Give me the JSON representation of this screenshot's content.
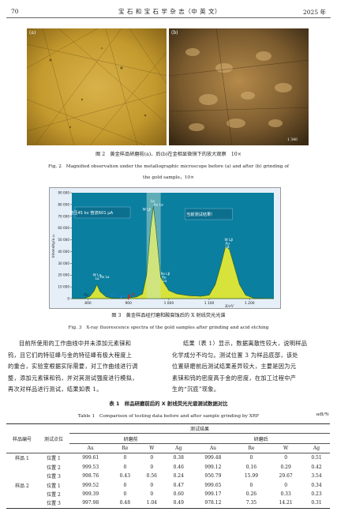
{
  "header": {
    "page_left": "70",
    "journal": "宝 石 和 宝 石 学 杂 志（中 英 文）",
    "year": "2025 年"
  },
  "figure2": {
    "label_a": "(a)",
    "label_b": "(b)",
    "scale_text": "1 340",
    "caption_cn": "图 2　黄金样品研磨前(a)、后(b)在金相显微镜下的放大观察　10×",
    "caption_en_1": "Fig. 2　Magnified observation under the metallographic microscope before (a) and after (b) grinding of",
    "caption_en_2": "the gold sample，10×"
  },
  "figure3": {
    "caption_cn": "图 3　黄金样品经打磨和酸腐蚀后的 X 射线荧光光谱",
    "caption_en": "Fig. 3　X-ray fluorescence spectra of the gold samples after grinding and acid etching",
    "settings_text": "管压45 kv  管流601 μA",
    "result_text": "当前测试结果!",
    "ylabel": "Intensity/a.u.",
    "xlabel": "E/eV",
    "peak_labels": {
      "center_top": "Lα",
      "center_au": "Au Lα",
      "center_w": "W Lβ",
      "left_w": "W Lα",
      "left_l": "Lα",
      "left_re": "Re Lα",
      "mid_re1": "Re Lβ",
      "mid_re2": "Re",
      "mid_l": "Lα",
      "right_w": "W Lβ",
      "right_au": "Au",
      "right_l": "Lβ",
      "cu": "Cu",
      "zn": "Zn",
      "pt": "Pt",
      "ga": "Ga"
    }
  },
  "chart_data": {
    "type": "area",
    "title": "",
    "xlabel": "E/eV",
    "ylabel": "Intensity/a.u.",
    "x_ticks": [
      "800",
      "900",
      "1 000",
      "1 100",
      "1 200"
    ],
    "y_ticks": [
      "0",
      "10 000",
      "20 000",
      "30 000",
      "40 000",
      "50 000",
      "60 000",
      "70 000",
      "80 000",
      "90 000"
    ],
    "ylim": [
      0,
      90000
    ],
    "xlim": [
      760,
      1260
    ],
    "series": [
      {
        "x": [
          760,
          790,
          805,
          815,
          822,
          830,
          845,
          860,
          880,
          900,
          920,
          935,
          945,
          955,
          962,
          968,
          980,
          1000,
          1020,
          1050,
          1080,
          1100,
          1115,
          1130,
          1140,
          1150,
          1160,
          1175,
          1190,
          1210,
          1240,
          1260
        ],
        "y": [
          0,
          0,
          2000,
          6500,
          12000,
          6000,
          1500,
          500,
          300,
          600,
          1500,
          4000,
          20000,
          60000,
          78500,
          60000,
          18000,
          7000,
          4000,
          2500,
          2000,
          3000,
          12000,
          30000,
          44000,
          42000,
          30000,
          12000,
          3000,
          500,
          200,
          0
        ]
      }
    ]
  },
  "body": {
    "left_paragraph": [
      "目前所使用的工作曲线中并未添加元素铼和",
      "钨，且它们的特征峰与金的特征峰有极大程度上",
      "的重合，实验室根据实际需要，对工作曲线进行调",
      "整，添加元素铼和钨，并对其测试强度进行模拟，",
      "再次对样品进行测试，结果如表 1。"
    ],
    "right_paragraph": [
      "结果（表 1）显示，数据离散性较大，说明样品",
      "化学成分不均匀。测试位置 3 为样品底部，该处",
      "位置研磨前后测试结果差异较大，主要是因为元",
      "素铼和钨的密度高于金的密度，在加工过程中产",
      "生的“沉底”现象。"
    ]
  },
  "table1": {
    "title_cn": "表 1　样品研磨前后的 X 射线荧光光谱测试数据对比",
    "title_en": "Table 1　Comparison of testing data before and after sample grinding by XRF",
    "unit": "wB/%",
    "col_sample": "样品编号",
    "col_point": "测试点位",
    "group_results": "测试结果",
    "group_before": "研磨前",
    "group_after": "研磨后",
    "elements": [
      "Au",
      "Re",
      "W",
      "Ag",
      "Au",
      "Re",
      "W",
      "Ag"
    ],
    "rows": [
      {
        "sample": "样品 1",
        "point": "位置 1",
        "values": [
          "999.61",
          "0",
          "0",
          "0.38",
          "999.48",
          "0",
          "0",
          "0.51"
        ]
      },
      {
        "sample": "",
        "point": "位置 2",
        "values": [
          "999.53",
          "0",
          "0",
          "0.46",
          "999.12",
          "0.16",
          "0.29",
          "0.42"
        ]
      },
      {
        "sample": "",
        "point": "位置 3",
        "values": [
          "998.76",
          "0.43",
          "0.56",
          "0.24",
          "950.79",
          "15.99",
          "29.67",
          "3.54"
        ]
      },
      {
        "sample": "样品 2",
        "point": "位置 1",
        "values": [
          "999.52",
          "0",
          "0",
          "0.47",
          "999.65",
          "0",
          "0",
          "0.34"
        ]
      },
      {
        "sample": "",
        "point": "位置 2",
        "values": [
          "999.39",
          "0",
          "0",
          "0.60",
          "999.17",
          "0.26",
          "0.33",
          "0.23"
        ]
      },
      {
        "sample": "",
        "point": "位置 3",
        "values": [
          "997.98",
          "0.48",
          "1.04",
          "0.49",
          "978.12",
          "7.35",
          "14.21",
          "0.31"
        ]
      }
    ]
  }
}
